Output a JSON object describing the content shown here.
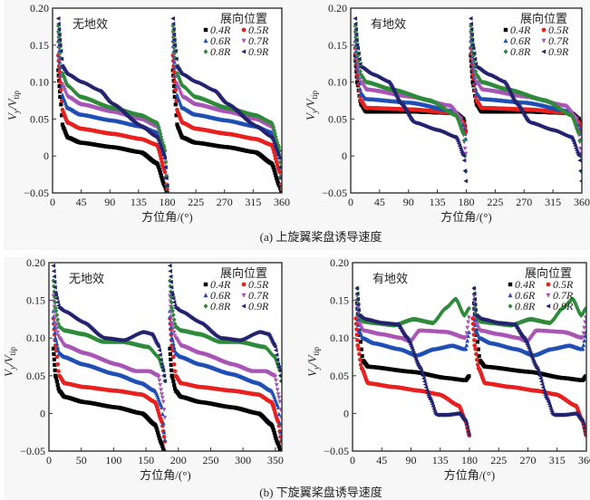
{
  "figure": {
    "caption_a": "(a) 上旋翼桨盘诱导速度",
    "caption_b": "(b) 下旋翼桨盘诱导速度"
  },
  "legend": {
    "title": "展向位置",
    "entries": [
      {
        "label": "0.4R",
        "color": "#000000",
        "marker": "square"
      },
      {
        "label": "0.5R",
        "color": "#e8201f",
        "marker": "circle"
      },
      {
        "label": "0.6R",
        "color": "#1f4fb4",
        "marker": "triangle-up"
      },
      {
        "label": "0.7R",
        "color": "#a855b5",
        "marker": "triangle-down"
      },
      {
        "label": "0.8R",
        "color": "#2e8b3a",
        "marker": "diamond"
      },
      {
        "label": "0.9R",
        "color": "#23236e",
        "marker": "triangle-left"
      }
    ]
  },
  "chart_data": [
    {
      "id": "a-left",
      "type": "scatter",
      "annotation": "无地效",
      "xlabel": "方位角/(°)",
      "ylabel": "Vy/Vtip",
      "xlim": [
        0,
        360
      ],
      "ylim": [
        -0.05,
        0.2
      ],
      "xticks": [
        0,
        45,
        90,
        135,
        180,
        225,
        270,
        315,
        360
      ],
      "yticks": [
        "-0.05",
        "0",
        "0.05",
        "0.10",
        "0.15",
        "0.20"
      ],
      "legend_position": "top-right",
      "series": [
        {
          "name": "0.4R",
          "profile": [
            [
              8,
              0.08
            ],
            [
              12,
              0.04
            ],
            [
              20,
              0.025
            ],
            [
              40,
              0.018
            ],
            [
              90,
              0.012
            ],
            [
              135,
              0.005
            ],
            [
              160,
              -0.01
            ],
            [
              172,
              -0.04
            ],
            [
              176,
              -0.05
            ]
          ]
        },
        {
          "name": "0.5R",
          "profile": [
            [
              8,
              0.1
            ],
            [
              12,
              0.06
            ],
            [
              20,
              0.045
            ],
            [
              40,
              0.037
            ],
            [
              90,
              0.03
            ],
            [
              135,
              0.023
            ],
            [
              160,
              0.015
            ],
            [
              172,
              -0.02
            ],
            [
              176,
              -0.045
            ]
          ]
        },
        {
          "name": "0.6R",
          "profile": [
            [
              8,
              0.12
            ],
            [
              12,
              0.08
            ],
            [
              20,
              0.065
            ],
            [
              40,
              0.056
            ],
            [
              90,
              0.048
            ],
            [
              135,
              0.04
            ],
            [
              160,
              0.032
            ],
            [
              172,
              0.0
            ],
            [
              176,
              -0.04
            ]
          ]
        },
        {
          "name": "0.7R",
          "profile": [
            [
              8,
              0.13
            ],
            [
              12,
              0.095
            ],
            [
              20,
              0.08
            ],
            [
              40,
              0.07
            ],
            [
              90,
              0.06
            ],
            [
              135,
              0.05
            ],
            [
              160,
              0.04
            ],
            [
              172,
              0.01
            ],
            [
              176,
              -0.04
            ]
          ]
        },
        {
          "name": "0.8R",
          "profile": [
            [
              8,
              0.14
            ],
            [
              12,
              0.11
            ],
            [
              20,
              0.095
            ],
            [
              40,
              0.08
            ],
            [
              90,
              0.065
            ],
            [
              135,
              0.055
            ],
            [
              160,
              0.045
            ],
            [
              172,
              0.01
            ],
            [
              176,
              -0.04
            ]
          ]
        },
        {
          "name": "0.9R",
          "profile": [
            [
              8,
              0.15
            ],
            [
              12,
              0.12
            ],
            [
              20,
              0.11
            ],
            [
              40,
              0.1
            ],
            [
              70,
              0.088
            ],
            [
              90,
              0.07
            ],
            [
              135,
              0.04
            ],
            [
              160,
              0.025
            ],
            [
              172,
              0.0
            ],
            [
              176,
              -0.04
            ]
          ]
        }
      ]
    },
    {
      "id": "a-right",
      "type": "scatter",
      "annotation": "有地效",
      "xlabel": "方位角/(°)",
      "ylabel": "Vy/Vtip",
      "xlim": [
        0,
        360
      ],
      "ylim": [
        -0.05,
        0.2
      ],
      "xticks": [
        0,
        45,
        90,
        135,
        180,
        225,
        270,
        315,
        360
      ],
      "yticks": [
        "-0.05",
        "0",
        "0.05",
        "0.10",
        "0.15",
        "0.20"
      ],
      "legend_position": "top-right",
      "series": [
        {
          "name": "0.4R",
          "profile": [
            [
              6,
              0.1
            ],
            [
              12,
              0.07
            ],
            [
              20,
              0.06
            ],
            [
              90,
              0.06
            ],
            [
              160,
              0.058
            ],
            [
              172,
              0.05
            ],
            [
              176,
              0.03
            ]
          ]
        },
        {
          "name": "0.5R",
          "profile": [
            [
              6,
              0.11
            ],
            [
              12,
              0.075
            ],
            [
              20,
              0.065
            ],
            [
              90,
              0.063
            ],
            [
              160,
              0.058
            ],
            [
              172,
              0.045
            ],
            [
              176,
              0.03
            ]
          ]
        },
        {
          "name": "0.6R",
          "profile": [
            [
              6,
              0.12
            ],
            [
              12,
              0.085
            ],
            [
              20,
              0.077
            ],
            [
              90,
              0.072
            ],
            [
              160,
              0.06
            ],
            [
              172,
              0.04
            ],
            [
              176,
              0.02
            ]
          ]
        },
        {
          "name": "0.7R",
          "profile": [
            [
              6,
              0.13
            ],
            [
              12,
              0.1
            ],
            [
              20,
              0.09
            ],
            [
              90,
              0.08
            ],
            [
              150,
              0.068
            ],
            [
              168,
              0.05
            ],
            [
              176,
              0.0
            ]
          ]
        },
        {
          "name": "0.8R",
          "profile": [
            [
              6,
              0.14
            ],
            [
              12,
              0.11
            ],
            [
              20,
              0.1
            ],
            [
              60,
              0.09
            ],
            [
              120,
              0.075
            ],
            [
              160,
              0.055
            ],
            [
              172,
              0.03
            ],
            [
              176,
              -0.03
            ]
          ]
        },
        {
          "name": "0.9R",
          "profile": [
            [
              6,
              0.15
            ],
            [
              12,
              0.12
            ],
            [
              30,
              0.11
            ],
            [
              55,
              0.1
            ],
            [
              75,
              0.07
            ],
            [
              95,
              0.045
            ],
            [
              130,
              0.035
            ],
            [
              160,
              0.025
            ],
            [
              172,
              0.0
            ],
            [
              176,
              -0.04
            ]
          ]
        }
      ]
    },
    {
      "id": "b-left",
      "type": "scatter",
      "annotation": "无地效",
      "xlabel": "方位角/(°)",
      "ylabel": "Vy/Vtip",
      "xlim": [
        0,
        360
      ],
      "ylim": [
        -0.05,
        0.2
      ],
      "xticks": [
        0,
        50,
        100,
        150,
        200,
        250,
        300,
        350
      ],
      "yticks": [
        "-0.05",
        "0",
        "0.05",
        "0.10",
        "0.15",
        "0.20"
      ],
      "legend_position": "top-right",
      "series": [
        {
          "name": "0.4R",
          "profile": [
            [
              6,
              0.05
            ],
            [
              12,
              0.03
            ],
            [
              20,
              0.022
            ],
            [
              50,
              0.015
            ],
            [
              100,
              0.008
            ],
            [
              140,
              0.0
            ],
            [
              160,
              -0.015
            ],
            [
              170,
              -0.04
            ],
            [
              174,
              -0.05
            ]
          ]
        },
        {
          "name": "0.5R",
          "profile": [
            [
              6,
              0.09
            ],
            [
              12,
              0.05
            ],
            [
              20,
              0.04
            ],
            [
              50,
              0.035
            ],
            [
              100,
              0.03
            ],
            [
              140,
              0.025
            ],
            [
              160,
              0.015
            ],
            [
              170,
              -0.01
            ],
            [
              176,
              -0.04
            ]
          ]
        },
        {
          "name": "0.6R",
          "profile": [
            [
              6,
              0.1
            ],
            [
              12,
              0.08
            ],
            [
              20,
              0.075
            ],
            [
              50,
              0.065
            ],
            [
              100,
              0.052
            ],
            [
              140,
              0.04
            ],
            [
              160,
              0.03
            ],
            [
              170,
              0.01
            ],
            [
              176,
              -0.04
            ]
          ]
        },
        {
          "name": "0.7R",
          "profile": [
            [
              6,
              0.12
            ],
            [
              12,
              0.1
            ],
            [
              20,
              0.09
            ],
            [
              50,
              0.08
            ],
            [
              100,
              0.065
            ],
            [
              130,
              0.056
            ],
            [
              150,
              0.056
            ],
            [
              165,
              0.05
            ],
            [
              172,
              0.02
            ],
            [
              176,
              -0.01
            ]
          ]
        },
        {
          "name": "0.8R",
          "profile": [
            [
              6,
              0.14
            ],
            [
              12,
              0.115
            ],
            [
              20,
              0.11
            ],
            [
              50,
              0.105
            ],
            [
              80,
              0.095
            ],
            [
              110,
              0.095
            ],
            [
              150,
              0.088
            ],
            [
              165,
              0.075
            ],
            [
              172,
              0.06
            ],
            [
              176,
              0.04
            ]
          ]
        },
        {
          "name": "0.9R",
          "profile": [
            [
              6,
              0.16
            ],
            [
              12,
              0.14
            ],
            [
              20,
              0.135
            ],
            [
              50,
              0.12
            ],
            [
              80,
              0.1
            ],
            [
              110,
              0.097
            ],
            [
              140,
              0.108
            ],
            [
              155,
              0.105
            ],
            [
              165,
              0.09
            ],
            [
              172,
              0.06
            ],
            [
              176,
              0.04
            ]
          ]
        }
      ]
    },
    {
      "id": "b-right",
      "type": "scatter",
      "annotation": "有地效",
      "xlabel": "方位角/(°)",
      "ylabel": "Vy/Vtip",
      "xlim": [
        0,
        360
      ],
      "ylim": [
        -0.05,
        0.2
      ],
      "xticks": [
        0,
        45,
        90,
        135,
        180,
        225,
        270,
        315,
        360
      ],
      "yticks": [
        "-0.05",
        "0",
        "0.05",
        "0.10",
        "0.15",
        "0.20"
      ],
      "legend_position": "top-right",
      "series": [
        {
          "name": "0.4R",
          "profile": [
            [
              6,
              0.11
            ],
            [
              12,
              0.07
            ],
            [
              20,
              0.062
            ],
            [
              90,
              0.055
            ],
            [
              140,
              0.047
            ],
            [
              170,
              0.044
            ],
            [
              176,
              0.05
            ]
          ]
        },
        {
          "name": "0.5R",
          "profile": [
            [
              4,
              0.09
            ],
            [
              10,
              0.06
            ],
            [
              20,
              0.04
            ],
            [
              60,
              0.035
            ],
            [
              100,
              0.03
            ],
            [
              130,
              0.025
            ],
            [
              160,
              0.01
            ],
            [
              170,
              -0.01
            ],
            [
              176,
              -0.03
            ]
          ]
        },
        {
          "name": "0.6R",
          "profile": [
            [
              6,
              0.11
            ],
            [
              12,
              0.1
            ],
            [
              30,
              0.093
            ],
            [
              70,
              0.085
            ],
            [
              95,
              0.077
            ],
            [
              120,
              0.085
            ],
            [
              150,
              0.09
            ],
            [
              170,
              0.085
            ],
            [
              176,
              0.11
            ]
          ]
        },
        {
          "name": "0.7R",
          "profile": [
            [
              6,
              0.12
            ],
            [
              12,
              0.11
            ],
            [
              40,
              0.105
            ],
            [
              70,
              0.1
            ],
            [
              85,
              0.095
            ],
            [
              100,
              0.11
            ],
            [
              140,
              0.108
            ],
            [
              170,
              0.1
            ],
            [
              176,
              0.13
            ]
          ]
        },
        {
          "name": "0.8R",
          "profile": [
            [
              6,
              0.13
            ],
            [
              12,
              0.122
            ],
            [
              30,
              0.12
            ],
            [
              60,
              0.117
            ],
            [
              90,
              0.125
            ],
            [
              120,
              0.12
            ],
            [
              140,
              0.14
            ],
            [
              155,
              0.152
            ],
            [
              168,
              0.13
            ],
            [
              176,
              0.14
            ]
          ]
        },
        {
          "name": "0.9R",
          "profile": [
            [
              6,
              0.13
            ],
            [
              14,
              0.125
            ],
            [
              40,
              0.12
            ],
            [
              65,
              0.118
            ],
            [
              80,
              0.1
            ],
            [
              100,
              0.06
            ],
            [
              115,
              0.02
            ],
            [
              125,
              -0.002
            ],
            [
              140,
              -0.002
            ],
            [
              160,
              0.0
            ],
            [
              170,
              -0.01
            ],
            [
              176,
              -0.03
            ]
          ]
        }
      ]
    }
  ]
}
